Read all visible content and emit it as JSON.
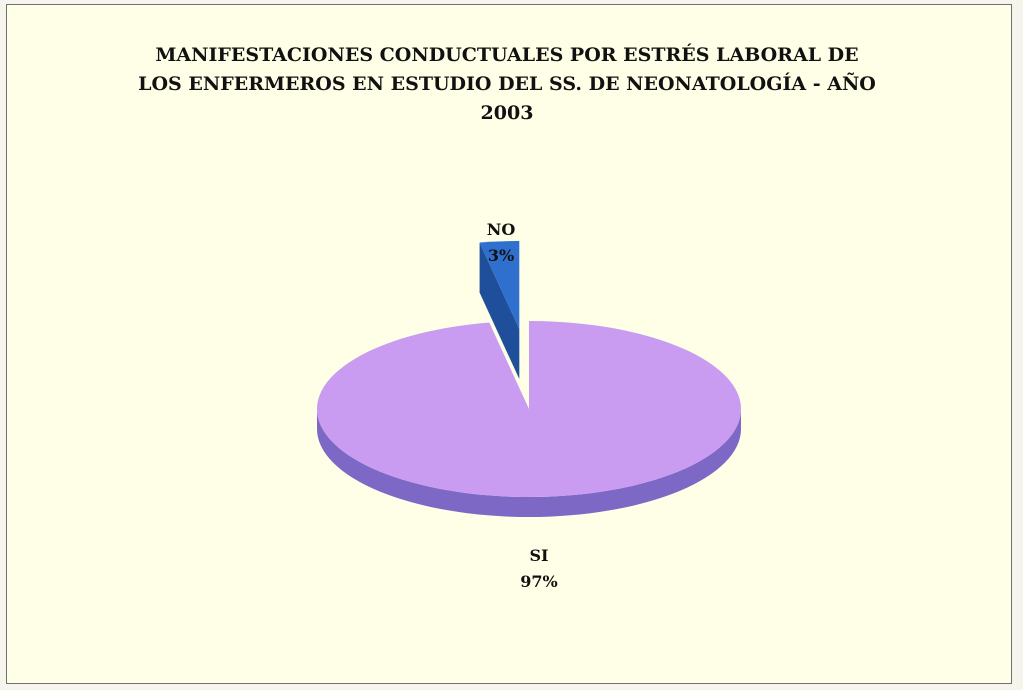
{
  "chart_data": {
    "type": "pie",
    "title_lines": [
      "MANIFESTACIONES CONDUCTUALES POR ESTRÉS LABORAL DE",
      "LOS ENFERMEROS EN ESTUDIO DEL SS. DE NEONATOLOGÍA - AÑO",
      "2003"
    ],
    "slices": [
      {
        "category": "SI",
        "value": 97,
        "value_label": "97%",
        "color": "#c99cf2",
        "side_color": "#7d68c6"
      },
      {
        "category": "NO",
        "value": 3,
        "value_label": "3%",
        "color": "#2f70cf",
        "side_color": "#1f4f9a"
      }
    ],
    "three_d": true,
    "exploded": "NO",
    "legend": "none",
    "background_color": "#fffee6"
  }
}
